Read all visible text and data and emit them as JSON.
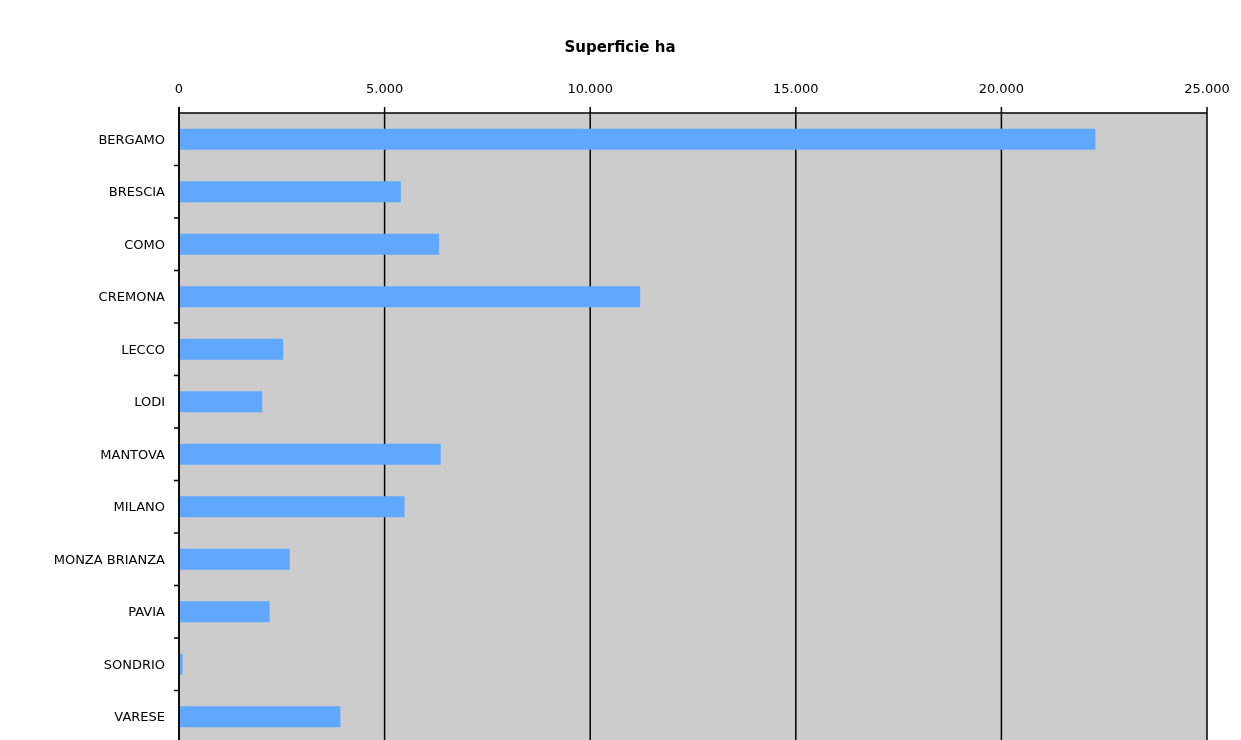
{
  "chart_data": {
    "type": "bar",
    "orientation": "horizontal",
    "title": "Superficie ha",
    "categories": [
      "BERGAMO",
      "BRESCIA",
      "COMO",
      "CREMONA",
      "LECCO",
      "LODI",
      "MANTOVA",
      "MILANO",
      "MONZA BRIANZA",
      "PAVIA",
      "SONDRIO",
      "VARESE"
    ],
    "values": [
      22260,
      5370,
      6300,
      11190,
      2510,
      2000,
      6340,
      5460,
      2670,
      2180,
      60,
      3900
    ],
    "color": "#60a8ff",
    "xlim": [
      0,
      25000
    ],
    "xticks": [
      {
        "value": 0,
        "label": "0"
      },
      {
        "value": 5000,
        "label": "5.000"
      },
      {
        "value": 10000,
        "label": "10.000"
      },
      {
        "value": 15000,
        "label": "15.000"
      },
      {
        "value": 20000,
        "label": "20.000"
      },
      {
        "value": 25000,
        "label": "25.000"
      }
    ],
    "grid": "x"
  }
}
